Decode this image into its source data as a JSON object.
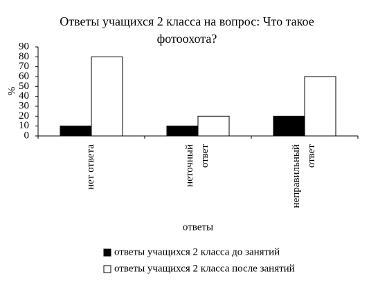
{
  "chart_data": {
    "type": "bar",
    "title": "Ответы учащихся 2 класса на вопрос: Что такое фотоохота?",
    "y_label": "%",
    "x_label": "ответы",
    "categories": [
      "нет ответа",
      "неточный\nответ",
      "неправильный\nответ"
    ],
    "series": [
      {
        "name": "ответы учащихся 2 класса до занятий",
        "color": "#000000",
        "values": [
          10,
          10,
          20
        ]
      },
      {
        "name": "ответы учащихся 2 класса после занятий",
        "color": "#ffffff",
        "values": [
          80,
          20,
          60
        ]
      }
    ],
    "ylim": [
      0,
      90
    ],
    "yticks": [
      0,
      10,
      20,
      30,
      40,
      50,
      60,
      70,
      80,
      90
    ],
    "legend": "bottom"
  }
}
